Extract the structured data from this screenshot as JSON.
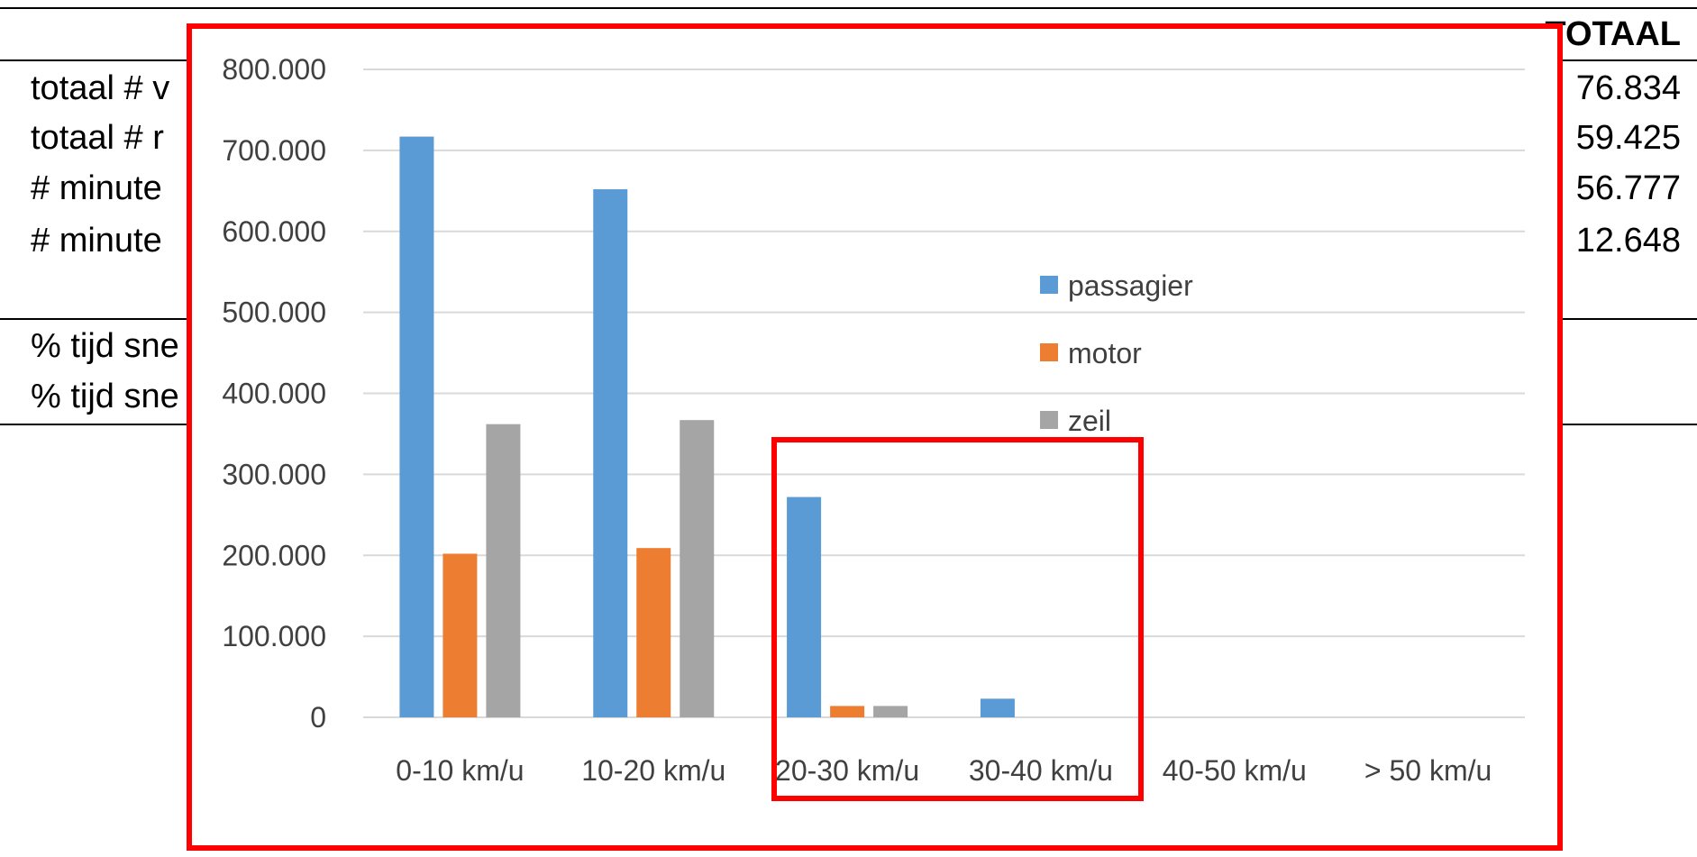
{
  "table": {
    "header_total": "TOTAAL",
    "rows": [
      {
        "label": "totaal # v",
        "value": "76.834"
      },
      {
        "label": "totaal # r",
        "value": "59.425"
      },
      {
        "label": "# minute",
        "value": "56.777"
      },
      {
        "label": "# minute",
        "value": "12.648"
      },
      {
        "label": "% tijd sne",
        "value": ""
      },
      {
        "label": "% tijd sne",
        "value": ""
      }
    ]
  },
  "highlight": {
    "color": "#ff0000"
  },
  "chart_data": {
    "type": "bar",
    "categories": [
      "0-10 km/u",
      "10-20 km/u",
      "20-30 km/u",
      "30-40 km/u",
      "40-50 km/u",
      "> 50 km/u"
    ],
    "series": [
      {
        "name": "passagier",
        "color": "#5b9bd5",
        "values": [
          717000,
          652000,
          272000,
          23000,
          0,
          0
        ]
      },
      {
        "name": "motor",
        "color": "#ed7d31",
        "values": [
          202000,
          209000,
          14000,
          0,
          0,
          0
        ]
      },
      {
        "name": "zeil",
        "color": "#a5a5a5",
        "values": [
          362000,
          367000,
          14000,
          0,
          0,
          0
        ]
      }
    ],
    "y_ticks": [
      "0",
      "100.000",
      "200.000",
      "300.000",
      "400.000",
      "500.000",
      "600.000",
      "700.000",
      "800.000"
    ],
    "ylim": [
      0,
      800000
    ],
    "grid": true,
    "legend_position": "center-right"
  }
}
